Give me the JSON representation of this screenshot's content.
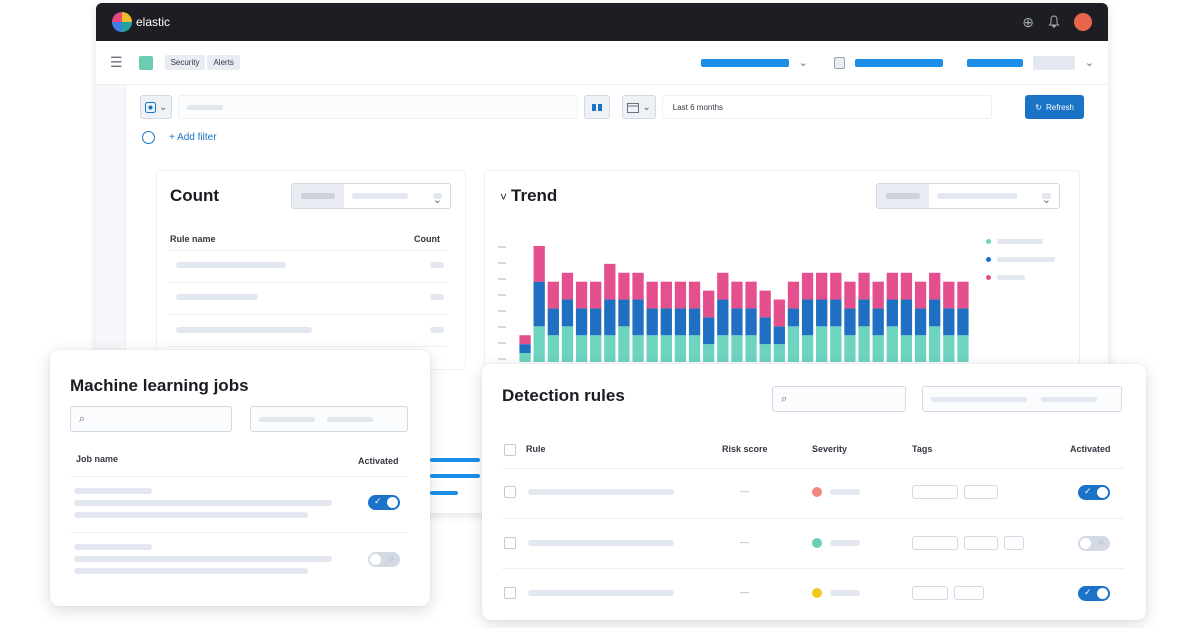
{
  "app": {
    "logo_text": "elastic",
    "breadcrumbs": [
      "Security",
      "Alerts"
    ]
  },
  "querybar": {
    "date_range": "Last 6 months",
    "refresh_label": "Refresh",
    "add_filter_label": "+ Add filter"
  },
  "count_panel": {
    "title": "Count",
    "col_rule_name": "Rule name",
    "col_count": "Count"
  },
  "trend_panel": {
    "title": "Trend",
    "collapse_glyph": "˅"
  },
  "chart_data": {
    "type": "bar",
    "stacked": true,
    "title": "Trend",
    "grid": false,
    "legend": "right",
    "series": [
      {
        "color": "#6dd4c0",
        "values": [
          1,
          4,
          3,
          4,
          3,
          3,
          3,
          4,
          3,
          3,
          3,
          3,
          3,
          2,
          3,
          3,
          3,
          2,
          2,
          4,
          3,
          4,
          4,
          3,
          4,
          3,
          4,
          3,
          3,
          4,
          3,
          3
        ]
      },
      {
        "color": "#1f6fc3",
        "values": [
          1,
          5,
          3,
          3,
          3,
          3,
          4,
          3,
          4,
          3,
          3,
          3,
          3,
          3,
          4,
          3,
          3,
          3,
          2,
          2,
          4,
          3,
          3,
          3,
          3,
          3,
          3,
          4,
          3,
          3,
          3,
          3
        ]
      },
      {
        "color": "#e4508e",
        "values": [
          1,
          4,
          3,
          3,
          3,
          3,
          4,
          3,
          3,
          3,
          3,
          3,
          3,
          3,
          3,
          3,
          3,
          3,
          3,
          3,
          3,
          3,
          3,
          3,
          3,
          3,
          3,
          3,
          3,
          3,
          3,
          3
        ]
      }
    ]
  },
  "ml_card": {
    "title": "Machine learning jobs",
    "col_job_name": "Job name",
    "col_activated": "Activated",
    "toggle_on_glyph": "✓",
    "toggle_off_glyph": "○"
  },
  "rules_card": {
    "title": "Detection rules",
    "col_rule": "Rule",
    "col_risk": "Risk score",
    "col_severity": "Severity",
    "col_tags": "Tags",
    "col_activated": "Activated",
    "risk_placeholder": "—",
    "severity_colors": [
      "#f0887e",
      "#6dcdb8",
      "#f2c81d"
    ]
  },
  "icons": {
    "search": "⌕",
    "chevron_down": "⌄",
    "refresh": "↻",
    "help": "⊕",
    "bell": "♫"
  }
}
